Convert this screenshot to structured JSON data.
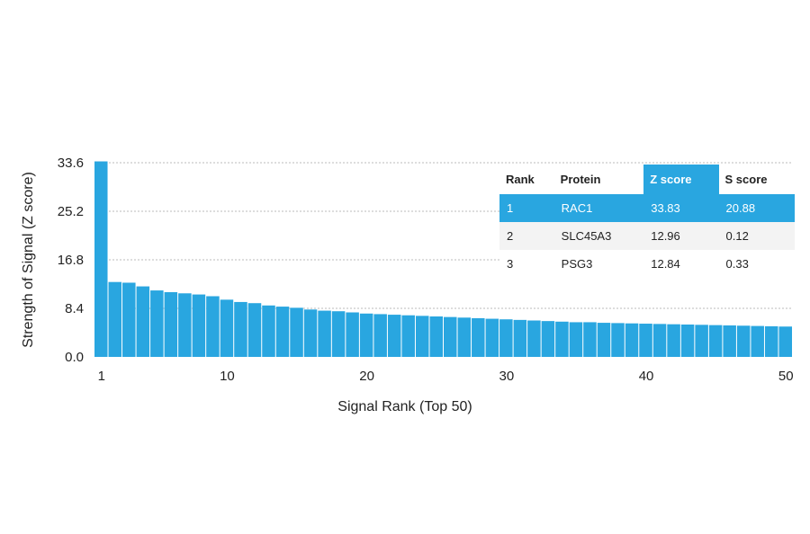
{
  "chart_data": {
    "type": "bar",
    "xlabel": "Signal Rank (Top 50)",
    "ylabel": "Strength of Signal (Z score)",
    "ylim": [
      0,
      33.6
    ],
    "y_ticks": [
      "0.0",
      "8.4",
      "16.8",
      "25.2",
      "33.6"
    ],
    "x_ticks": [
      "1",
      "10",
      "20",
      "30",
      "40",
      "50"
    ],
    "grid": "horizontal dotted",
    "bar_color": "#29a6e0",
    "categories": [
      1,
      2,
      3,
      4,
      5,
      6,
      7,
      8,
      9,
      10,
      11,
      12,
      13,
      14,
      15,
      16,
      17,
      18,
      19,
      20,
      21,
      22,
      23,
      24,
      25,
      26,
      27,
      28,
      29,
      30,
      31,
      32,
      33,
      34,
      35,
      36,
      37,
      38,
      39,
      40,
      41,
      42,
      43,
      44,
      45,
      46,
      47,
      48,
      49,
      50
    ],
    "values": [
      33.83,
      12.96,
      12.84,
      12.2,
      11.5,
      11.2,
      11.0,
      10.8,
      10.5,
      9.9,
      9.5,
      9.3,
      8.9,
      8.7,
      8.5,
      8.2,
      8.0,
      7.9,
      7.7,
      7.5,
      7.4,
      7.3,
      7.2,
      7.1,
      7.0,
      6.9,
      6.8,
      6.7,
      6.6,
      6.5,
      6.4,
      6.3,
      6.2,
      6.1,
      6.0,
      6.0,
      5.9,
      5.85,
      5.8,
      5.75,
      5.7,
      5.65,
      5.6,
      5.55,
      5.5,
      5.45,
      5.4,
      5.35,
      5.3,
      5.25
    ]
  },
  "table": {
    "headers": [
      "Rank",
      "Protein",
      "Z score",
      "S score"
    ],
    "rows": [
      [
        "1",
        "RAC1",
        "33.83",
        "20.88"
      ],
      [
        "2",
        "SLC45A3",
        "12.96",
        "0.12"
      ],
      [
        "3",
        "PSG3",
        "12.84",
        "0.33"
      ]
    ]
  },
  "colors": {
    "accent": "#29a6e0",
    "grid": "#bbbbbb",
    "row_alt": "#f3f3f3"
  }
}
